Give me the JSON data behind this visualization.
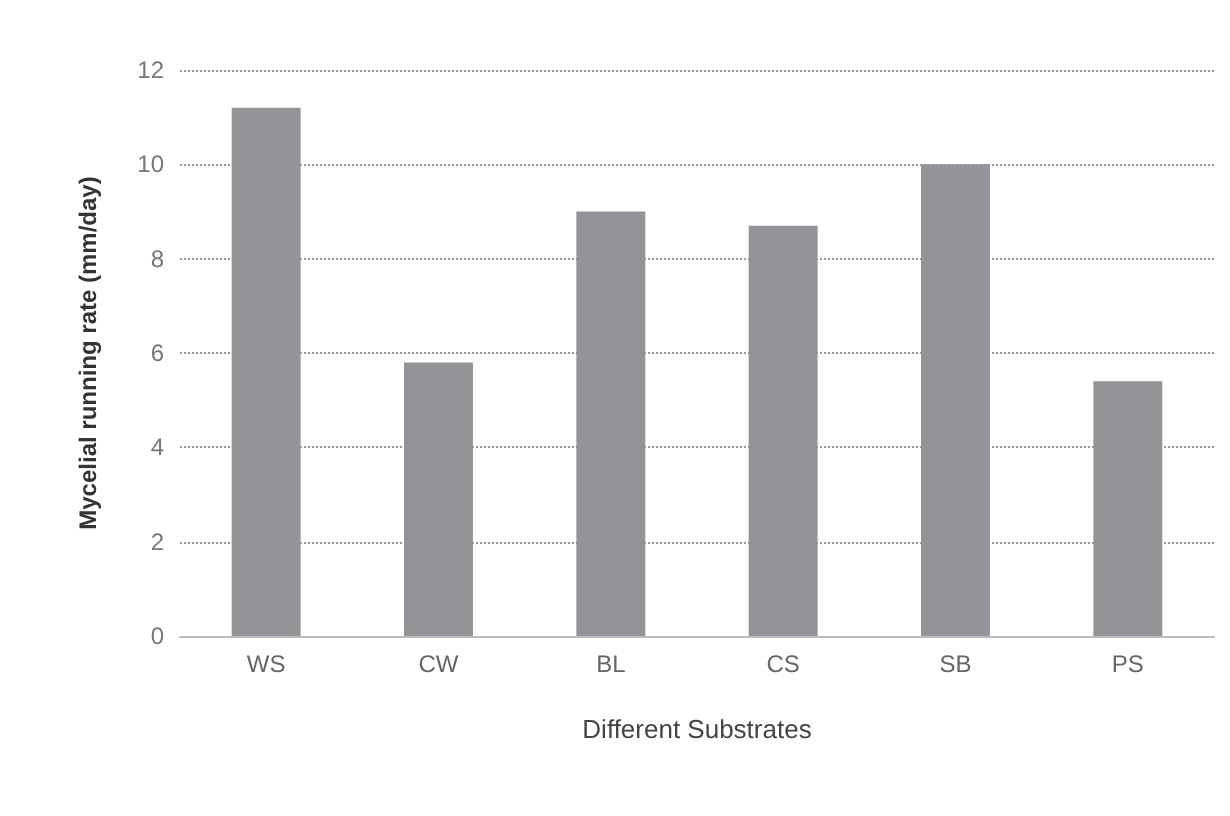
{
  "chart_data": {
    "type": "bar",
    "xlabel": "Different Substrates",
    "ylabel": "Mycelial running rate (mm/day)",
    "categories": [
      "WS",
      "CW",
      "BL",
      "CS",
      "SB",
      "PS"
    ],
    "values": [
      11.2,
      5.8,
      9.0,
      8.7,
      10.0,
      5.4
    ],
    "color": "#939398",
    "ylim": [
      0,
      12
    ],
    "yticks": [
      0,
      2,
      4,
      6,
      8,
      10,
      12
    ],
    "grid": "y"
  }
}
